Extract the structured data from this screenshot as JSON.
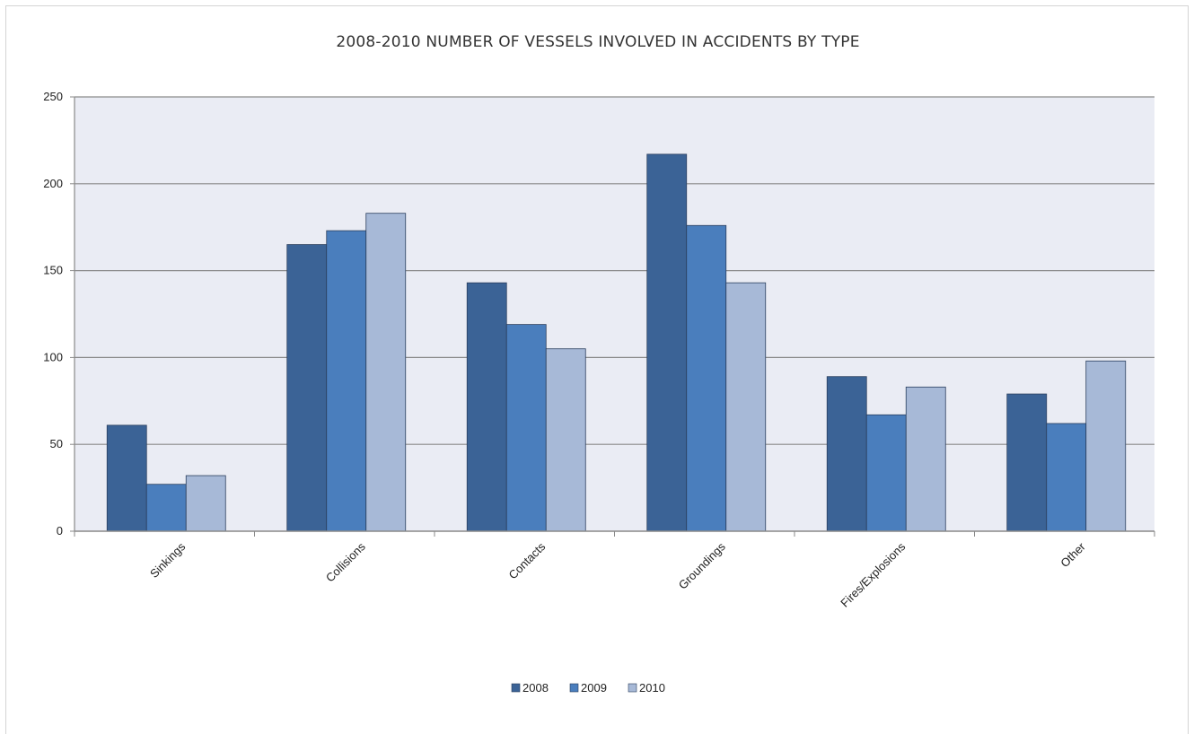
{
  "chart_data": {
    "type": "bar",
    "title": "2008-2010 NUMBER OF VESSELS INVOLVED IN ACCIDENTS BY TYPE",
    "xlabel": "",
    "ylabel": "",
    "categories": [
      "Sinkings",
      "Collisions",
      "Contacts",
      "Groundings",
      "Fires/Explosions",
      "Other"
    ],
    "series": [
      {
        "name": "2008",
        "color": "#3b6396",
        "values": [
          61,
          165,
          143,
          217,
          89,
          79
        ]
      },
      {
        "name": "2009",
        "color": "#4a7ebd",
        "values": [
          27,
          173,
          119,
          176,
          67,
          62
        ]
      },
      {
        "name": "2010",
        "color": "#a7b9d7",
        "values": [
          32,
          183,
          105,
          143,
          83,
          98
        ]
      }
    ],
    "ylim": [
      0,
      250
    ],
    "yticks": [
      0,
      50,
      100,
      150,
      200,
      250
    ],
    "grid": true,
    "legend_position": "bottom",
    "plot_background": "#eaecf4"
  }
}
